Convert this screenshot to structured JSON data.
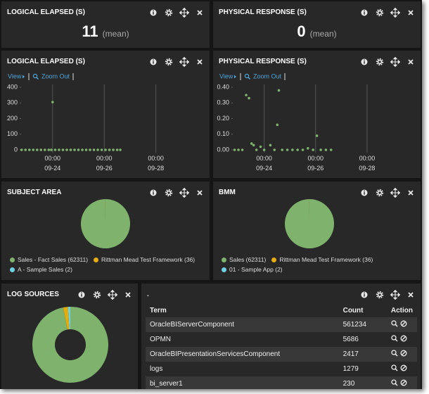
{
  "metrics": [
    {
      "title": "LOGICAL ELAPSED (S)",
      "value": 11,
      "unit": "(mean)"
    },
    {
      "title": "PHYSICAL RESPONSE (S)",
      "value": 0,
      "unit": "(mean)"
    }
  ],
  "chart_data": [
    {
      "type": "scatter",
      "title": "LOGICAL ELAPSED (S)",
      "controls": [
        "View",
        "Zoom Out"
      ],
      "color": "#7eb26d",
      "xlim": [
        22.78,
        29.97
      ],
      "xticks": [
        {
          "value": 24,
          "label": [
            "00:00",
            "09-24"
          ]
        },
        {
          "value": 26,
          "label": [
            "00:00",
            "09-26"
          ]
        },
        {
          "value": 28,
          "label": [
            "00:00",
            "09-28"
          ]
        }
      ],
      "ylim": [
        0,
        400
      ],
      "yticks": [
        0,
        100,
        200,
        300,
        400
      ],
      "x": [
        22.8,
        22.95,
        23.1,
        23.25,
        23.4,
        23.55,
        23.7,
        23.85,
        23.95,
        24.0,
        24.1,
        24.25,
        24.4,
        24.55,
        24.7,
        24.85,
        25.0,
        25.15,
        25.3,
        25.45,
        25.6,
        25.75,
        25.9,
        26.05,
        26.2,
        26.35,
        26.5,
        26.62
      ],
      "values": [
        0,
        0,
        0,
        0,
        0,
        0,
        0,
        0,
        0,
        305,
        0,
        0,
        0,
        0,
        0,
        0,
        0,
        0,
        0,
        0,
        0,
        0,
        0,
        0,
        0,
        0,
        0,
        0
      ]
    },
    {
      "type": "scatter",
      "title": "PHYSICAL RESPONSE (S)",
      "controls": [
        "View",
        "Zoom Out"
      ],
      "color": "#7eb26d",
      "xlim": [
        22.78,
        29.97
      ],
      "xticks": [
        {
          "value": 24,
          "label": [
            "00:00",
            "09-24"
          ]
        },
        {
          "value": 26,
          "label": [
            "00:00",
            "09-26"
          ]
        },
        {
          "value": 28,
          "label": [
            "00:00",
            "09-28"
          ]
        }
      ],
      "ylim": [
        0,
        0.4
      ],
      "yticks": [
        {
          "value": 0,
          "label": "0.00"
        },
        {
          "value": 0.1,
          "label": "0.10"
        },
        {
          "value": 0.2,
          "label": "0.20"
        },
        {
          "value": 0.3,
          "label": "0.30"
        },
        {
          "value": 0.4,
          "label": "0.40"
        }
      ],
      "x": [
        22.85,
        23.0,
        23.15,
        23.3,
        23.41,
        23.51,
        23.59,
        23.7,
        23.86,
        24.0,
        24.24,
        24.4,
        24.51,
        24.57,
        24.7,
        24.9,
        25.1,
        25.3,
        25.5,
        25.7,
        25.9,
        26.05,
        26.2,
        26.4,
        26.6
      ],
      "values": [
        0,
        0,
        0,
        0.35,
        0.33,
        0.04,
        0.03,
        0,
        0.02,
        0,
        0.03,
        0,
        0.16,
        0.38,
        0,
        0,
        0,
        0,
        0,
        0.01,
        0,
        0.09,
        0,
        0,
        0
      ]
    },
    {
      "type": "pie",
      "title": "SUBJECT AREA",
      "categories": [
        "Sales - Fact Sales",
        "Rittman Mead Test Framework",
        "A - Sample Sales"
      ],
      "values": [
        62311,
        36,
        2
      ],
      "value_labels": [
        "(62311)",
        "(36)",
        "(2)"
      ],
      "colors": [
        "#7eb26d",
        "#e5ac0e",
        "#6ed0e0"
      ]
    },
    {
      "type": "pie",
      "title": "BMM",
      "categories": [
        "Sales",
        "Rittman Mead Test Framework",
        "01 - Sample App"
      ],
      "values": [
        62311,
        36,
        2
      ],
      "value_labels": [
        "(62311)",
        "(36)",
        "(2)"
      ],
      "colors": [
        "#7eb26d",
        "#e5ac0e",
        "#6ed0e0"
      ]
    },
    {
      "type": "donut",
      "title": "LOG SOURCES",
      "categories": [
        null,
        null,
        null
      ],
      "values": [
        97,
        2,
        1
      ],
      "colors": [
        "#7eb26d",
        "#e5ac0e",
        "#6ed0e0"
      ]
    }
  ],
  "table": {
    "title": ".",
    "columns": [
      "Term",
      "Count",
      "Action"
    ],
    "rows": [
      [
        "OracleBIServerComponent",
        561234
      ],
      [
        "OPMN",
        5686
      ],
      [
        "OracleBIPresentationServicesComponent",
        2417
      ],
      [
        "logs",
        1279
      ],
      [
        "bi_server1",
        230
      ]
    ]
  }
}
